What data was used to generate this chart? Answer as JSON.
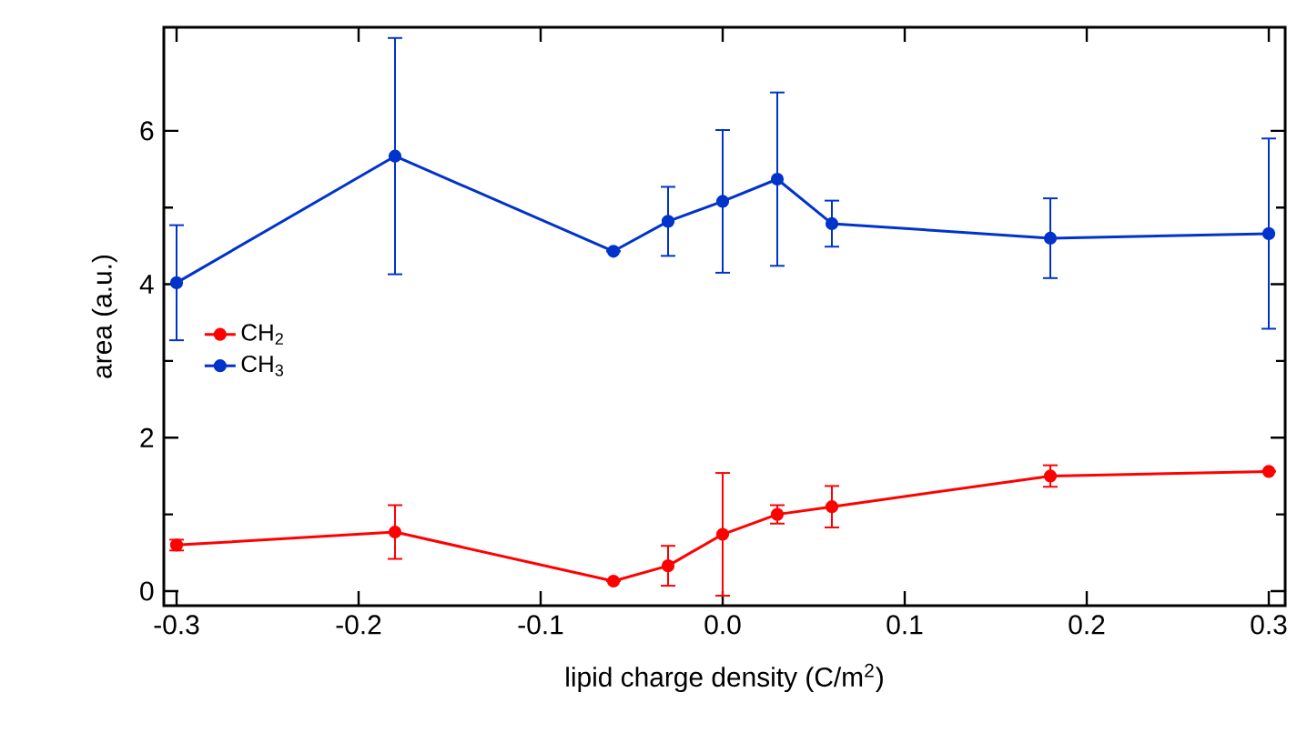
{
  "chart_data": {
    "type": "line",
    "xlabel": "lipid charge density (C/m$^{2}$)",
    "ylabel": "area (a.u.)",
    "x": [
      -0.3,
      -0.18,
      -0.06,
      -0.03,
      0.0,
      0.03,
      0.06,
      0.18,
      0.3
    ],
    "series": [
      {
        "name": "CH$_{2}$",
        "color": "#ff0000",
        "values": [
          0.6,
          0.77,
          0.13,
          0.33,
          0.74,
          1.0,
          1.1,
          1.5,
          1.56
        ],
        "errors": [
          0.07,
          0.35,
          null,
          0.26,
          0.8,
          0.12,
          0.27,
          0.14,
          null
        ]
      },
      {
        "name": "CH$_{3}$",
        "color": "#0033cc",
        "values": [
          4.02,
          5.67,
          4.43,
          4.82,
          5.08,
          5.37,
          4.79,
          4.6,
          4.66
        ],
        "errors": [
          0.75,
          1.54,
          null,
          0.45,
          0.93,
          1.13,
          0.3,
          0.52,
          1.24
        ]
      }
    ],
    "xlim": [
      -0.307,
      0.309
    ],
    "ylim": [
      -0.19,
      7.35
    ],
    "xticks": [
      {
        "value": -0.3,
        "label": "-0.3"
      },
      {
        "value": -0.2,
        "label": "-0.2"
      },
      {
        "value": -0.1,
        "label": "-0.1"
      },
      {
        "value": 0.0,
        "label": "0.0"
      },
      {
        "value": 0.1,
        "label": "0.1"
      },
      {
        "value": 0.2,
        "label": "0.2"
      },
      {
        "value": 0.3,
        "label": "0.3"
      }
    ],
    "yticks": [
      0,
      2,
      4,
      6
    ],
    "grid": false,
    "legend": "left",
    "marker": "circle",
    "line_style": "solid"
  }
}
